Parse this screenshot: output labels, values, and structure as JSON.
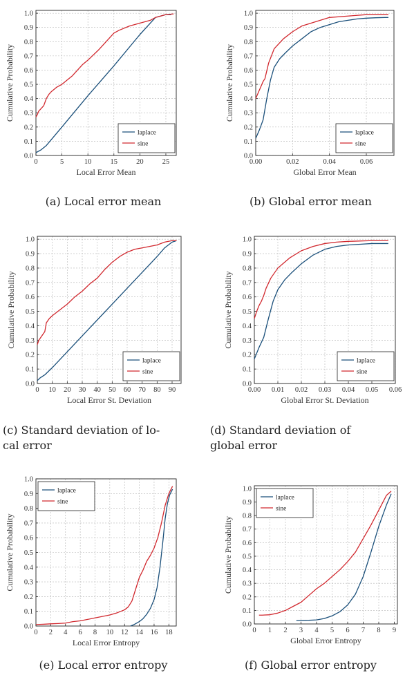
{
  "colors": {
    "laplace": "#1a4f7a",
    "sine": "#d1282e",
    "grid": "#b4b4b4"
  },
  "panels": [
    {
      "caption": "(a) Local error mean",
      "chart_data": {
        "type": "line",
        "xlabel": "Local Error Mean",
        "ylabel": "Cumulative Probability",
        "xlim": [
          0,
          27
        ],
        "ylim": [
          0,
          1.02
        ],
        "xticks": [
          0,
          5,
          10,
          15,
          20,
          25
        ],
        "yticks": [
          0,
          0.1,
          0.2,
          0.3,
          0.4,
          0.5,
          0.6,
          0.7,
          0.8,
          0.9,
          1.0
        ],
        "ytick_labels": [
          "0.0",
          "0.1",
          "0.2",
          "0.3",
          "0.4",
          "0.5",
          "0.6",
          "0.7",
          "0.8",
          "0.9",
          "1.0"
        ],
        "legend": "bottom-right",
        "series": [
          {
            "name": "laplace",
            "x": [
              0,
              1,
              2,
              5,
              10,
              15,
              20,
              23,
              25,
              26
            ],
            "y": [
              0.02,
              0.04,
              0.07,
              0.2,
              0.42,
              0.63,
              0.85,
              0.97,
              0.99,
              0.99
            ]
          },
          {
            "name": "sine",
            "x": [
              0,
              0.3,
              0.5,
              1,
              1.5,
              2,
              2.5,
              3,
              4,
              5,
              6,
              7,
              8,
              9,
              10,
              12,
              14,
              15,
              16,
              18,
              20,
              22,
              23,
              24,
              25,
              26.5
            ],
            "y": [
              0.27,
              0.29,
              0.31,
              0.33,
              0.35,
              0.4,
              0.43,
              0.45,
              0.48,
              0.5,
              0.53,
              0.56,
              0.6,
              0.64,
              0.67,
              0.74,
              0.82,
              0.86,
              0.88,
              0.91,
              0.93,
              0.95,
              0.97,
              0.98,
              0.99,
              0.995
            ]
          }
        ]
      }
    },
    {
      "caption": "(b) Global error mean",
      "chart_data": {
        "type": "line",
        "xlabel": "Global Error Mean",
        "ylabel": "Cumulative Probability",
        "xlim": [
          0,
          0.075
        ],
        "ylim": [
          0,
          1.02
        ],
        "xticks": [
          0,
          0.02,
          0.04,
          0.06
        ],
        "xtick_labels": [
          "0.00",
          "0.02",
          "0.04",
          "0.06"
        ],
        "yticks": [
          0,
          0.1,
          0.2,
          0.3,
          0.4,
          0.5,
          0.6,
          0.7,
          0.8,
          0.9,
          1.0
        ],
        "ytick_labels": [
          "0.0",
          "0.1",
          "0.2",
          "0.3",
          "0.4",
          "0.5",
          "0.6",
          "0.7",
          "0.8",
          "0.9",
          "1.0"
        ],
        "legend": "bottom-right",
        "series": [
          {
            "name": "laplace",
            "x": [
              0,
              0.002,
              0.004,
              0.006,
              0.008,
              0.01,
              0.013,
              0.016,
              0.02,
              0.025,
              0.03,
              0.035,
              0.04,
              0.045,
              0.05,
              0.055,
              0.06,
              0.065,
              0.07,
              0.072
            ],
            "y": [
              0.12,
              0.18,
              0.25,
              0.4,
              0.53,
              0.62,
              0.68,
              0.72,
              0.77,
              0.82,
              0.87,
              0.9,
              0.92,
              0.94,
              0.95,
              0.96,
              0.965,
              0.968,
              0.97,
              0.97
            ]
          },
          {
            "name": "sine",
            "x": [
              0,
              0.002,
              0.004,
              0.005,
              0.007,
              0.01,
              0.015,
              0.02,
              0.025,
              0.03,
              0.035,
              0.04,
              0.05,
              0.06,
              0.072
            ],
            "y": [
              0.4,
              0.46,
              0.52,
              0.54,
              0.65,
              0.75,
              0.82,
              0.87,
              0.91,
              0.93,
              0.95,
              0.97,
              0.98,
              0.99,
              0.99
            ]
          }
        ]
      }
    },
    {
      "caption": "(c) Standard deviation of lo- cal error",
      "caption_lines": [
        "(c) Standard deviation of lo-",
        "cal error"
      ],
      "chart_data": {
        "type": "line",
        "xlabel": "Local Error St. Deviation",
        "ylabel": "Cumulative Probability",
        "xlim": [
          0,
          96
        ],
        "ylim": [
          0,
          1.02
        ],
        "xticks": [
          0,
          10,
          20,
          30,
          40,
          50,
          60,
          70,
          80,
          90
        ],
        "yticks": [
          0,
          0.1,
          0.2,
          0.3,
          0.4,
          0.5,
          0.6,
          0.7,
          0.8,
          0.9,
          1.0
        ],
        "ytick_labels": [
          "0.0",
          "0.1",
          "0.2",
          "0.3",
          "0.4",
          "0.5",
          "0.6",
          "0.7",
          "0.8",
          "0.9",
          "1.0"
        ],
        "legend": "bottom-right",
        "series": [
          {
            "name": "laplace",
            "x": [
              0,
              2,
              5,
              10,
              20,
              30,
              40,
              50,
              60,
              70,
              80,
              85,
              90,
              93
            ],
            "y": [
              0.02,
              0.04,
              0.06,
              0.11,
              0.22,
              0.33,
              0.44,
              0.55,
              0.66,
              0.77,
              0.88,
              0.94,
              0.98,
              0.99
            ]
          },
          {
            "name": "sine",
            "x": [
              0,
              1,
              3,
              5,
              6,
              8,
              10,
              15,
              20,
              25,
              30,
              35,
              40,
              45,
              50,
              55,
              60,
              65,
              70,
              75,
              80,
              85,
              90,
              93
            ],
            "y": [
              0.27,
              0.3,
              0.33,
              0.36,
              0.42,
              0.45,
              0.47,
              0.51,
              0.55,
              0.6,
              0.64,
              0.69,
              0.73,
              0.79,
              0.84,
              0.88,
              0.91,
              0.93,
              0.94,
              0.95,
              0.96,
              0.98,
              0.99,
              0.99
            ]
          }
        ]
      }
    },
    {
      "caption": "(d) Standard deviation of global error",
      "caption_lines": [
        "(d) Standard deviation of",
        "global error"
      ],
      "chart_data": {
        "type": "line",
        "xlabel": "Global Error St. Deviation",
        "ylabel": "Cumulative Probability",
        "xlim": [
          0,
          0.06
        ],
        "ylim": [
          0,
          1.02
        ],
        "xticks": [
          0,
          0.01,
          0.02,
          0.03,
          0.04,
          0.05,
          0.06
        ],
        "xtick_labels": [
          "0.00",
          "0.01",
          "0.02",
          "0.03",
          "0.04",
          "0.05",
          "0.06"
        ],
        "yticks": [
          0,
          0.1,
          0.2,
          0.3,
          0.4,
          0.5,
          0.6,
          0.7,
          0.8,
          0.9,
          1.0
        ],
        "ytick_labels": [
          "0.0",
          "0.1",
          "0.2",
          "0.3",
          "0.4",
          "0.5",
          "0.6",
          "0.7",
          "0.8",
          "0.9",
          "1.0"
        ],
        "legend": "bottom-right",
        "series": [
          {
            "name": "laplace",
            "x": [
              0,
              0.002,
              0.004,
              0.006,
              0.008,
              0.01,
              0.013,
              0.016,
              0.02,
              0.025,
              0.03,
              0.035,
              0.04,
              0.045,
              0.05,
              0.055,
              0.057
            ],
            "y": [
              0.17,
              0.25,
              0.32,
              0.45,
              0.57,
              0.65,
              0.72,
              0.77,
              0.83,
              0.89,
              0.93,
              0.95,
              0.96,
              0.965,
              0.97,
              0.97,
              0.97
            ]
          },
          {
            "name": "sine",
            "x": [
              0,
              0.001,
              0.002,
              0.003,
              0.004,
              0.005,
              0.007,
              0.01,
              0.015,
              0.02,
              0.025,
              0.03,
              0.035,
              0.04,
              0.05,
              0.057
            ],
            "y": [
              0.45,
              0.5,
              0.54,
              0.57,
              0.61,
              0.66,
              0.73,
              0.8,
              0.87,
              0.92,
              0.95,
              0.97,
              0.98,
              0.985,
              0.99,
              0.99
            ]
          }
        ]
      }
    },
    {
      "caption": "(e) Local error entropy",
      "chart_data": {
        "type": "line",
        "xlabel": "Local Error Entropy",
        "ylabel": "Cumulative Probability",
        "xlim": [
          0,
          19
        ],
        "ylim": [
          0,
          1.0
        ],
        "xticks": [
          0,
          2,
          4,
          6,
          8,
          10,
          12,
          14,
          16,
          18
        ],
        "yticks": [
          0,
          0.1,
          0.2,
          0.3,
          0.4,
          0.5,
          0.6,
          0.7,
          0.8,
          0.9,
          1.0
        ],
        "ytick_labels": [
          "0.0",
          "0.1",
          "0.2",
          "0.3",
          "0.4",
          "0.5",
          "0.6",
          "0.7",
          "0.8",
          "0.9",
          "1.0"
        ],
        "legend": "top-left",
        "series": [
          {
            "name": "laplace",
            "x": [
              12.8,
              13.3,
              14,
              14.5,
              15,
              15.5,
              16,
              16.4,
              16.8,
              17.2,
              17.5,
              17.8,
              18.1,
              18.5
            ],
            "y": [
              0.0,
              0.01,
              0.03,
              0.05,
              0.08,
              0.12,
              0.18,
              0.26,
              0.4,
              0.58,
              0.73,
              0.83,
              0.89,
              0.93
            ]
          },
          {
            "name": "sine",
            "x": [
              0,
              1,
              2,
              3,
              4,
              5,
              6,
              7,
              8,
              9,
              10,
              11,
              12,
              12.5,
              13,
              13.5,
              14,
              14.5,
              15,
              15.5,
              16,
              16.5,
              17,
              17.5,
              18,
              18.5
            ],
            "y": [
              0.01,
              0.012,
              0.015,
              0.017,
              0.02,
              0.03,
              0.035,
              0.045,
              0.055,
              0.065,
              0.075,
              0.09,
              0.11,
              0.13,
              0.17,
              0.25,
              0.33,
              0.38,
              0.44,
              0.48,
              0.53,
              0.6,
              0.7,
              0.82,
              0.9,
              0.95
            ]
          }
        ]
      }
    },
    {
      "caption": "(f) Global error entropy",
      "chart_data": {
        "type": "line",
        "xlabel": "Global Error Entropy",
        "ylabel": "Cumulative Probability",
        "xlim": [
          0,
          9.2
        ],
        "ylim": [
          0,
          1.02
        ],
        "xticks": [
          0,
          1,
          2,
          3,
          4,
          5,
          6,
          7,
          8,
          9
        ],
        "yticks": [
          0,
          0.1,
          0.2,
          0.3,
          0.4,
          0.5,
          0.6,
          0.7,
          0.8,
          0.9,
          1.0
        ],
        "ytick_labels": [
          "0.0",
          "0.1",
          "0.2",
          "0.3",
          "0.4",
          "0.5",
          "0.6",
          "0.7",
          "0.8",
          "0.9",
          "1.0"
        ],
        "legend": "top-left",
        "series": [
          {
            "name": "laplace",
            "x": [
              2.7,
              3.5,
              4,
              4.5,
              5,
              5.5,
              6,
              6.5,
              7,
              7.5,
              8,
              8.5,
              8.8
            ],
            "y": [
              0.025,
              0.027,
              0.03,
              0.04,
              0.06,
              0.09,
              0.14,
              0.22,
              0.35,
              0.53,
              0.72,
              0.88,
              0.96
            ]
          },
          {
            "name": "sine",
            "x": [
              0.3,
              0.5,
              1,
              1.5,
              2,
              2.5,
              3,
              3.5,
              4,
              4.5,
              5,
              5.5,
              6,
              6.5,
              7,
              7.5,
              8,
              8.5,
              8.8
            ],
            "y": [
              0.065,
              0.065,
              0.068,
              0.08,
              0.1,
              0.13,
              0.16,
              0.21,
              0.26,
              0.3,
              0.35,
              0.4,
              0.46,
              0.53,
              0.63,
              0.73,
              0.84,
              0.95,
              0.98
            ]
          }
        ]
      }
    }
  ]
}
